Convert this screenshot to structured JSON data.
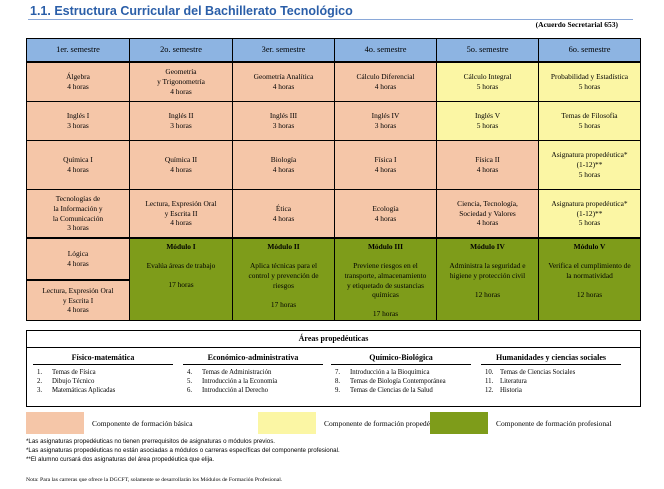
{
  "title": "1.1. Estructura Curricular del Bachillerato Tecnológico",
  "acuerdo": "(Acuerdo Secretarial 653)",
  "colors": {
    "basica": "#f5c6a8",
    "propedeutica": "#fbf6a4",
    "profesional": "#7e9c1a",
    "header": "#8db4e2"
  },
  "semesters": [
    "1er. semestre",
    "2o. semestre",
    "3er. semestre",
    "4o. semestre",
    "5o. semestre",
    "6o. semestre"
  ],
  "rows": [
    [
      {
        "l1": "Álgebra",
        "h": "4 horas"
      },
      {
        "l1": "Geometría",
        "l2": "y Trigonometría",
        "h": "4 horas"
      },
      {
        "l1": "Geometría Analítica",
        "h": "4 horas"
      },
      {
        "l1": "Cálculo Diferencial",
        "h": "4 horas"
      },
      {
        "l1": "Cálculo Integral",
        "h": "5 horas"
      },
      {
        "l1": "Probabilidad y Estadística",
        "h": "5 horas"
      }
    ],
    [
      {
        "l1": "Inglés I",
        "h": "3 horas"
      },
      {
        "l1": "Inglés II",
        "h": "3 horas"
      },
      {
        "l1": "Inglés III",
        "h": "3 horas"
      },
      {
        "l1": "Inglés IV",
        "h": "3 horas"
      },
      {
        "l1": "Inglés V",
        "h": "5 horas"
      },
      {
        "l1": "Temas de Filosofía",
        "h": "5 horas"
      }
    ],
    [
      {
        "l1": "Química I",
        "h": "4 horas"
      },
      {
        "l1": "Química II",
        "h": "4 horas"
      },
      {
        "l1": "Biología",
        "h": "4 horas"
      },
      {
        "l1": "Física I",
        "h": "4 horas"
      },
      {
        "l1": "Física II",
        "h": "4 horas"
      },
      {
        "l1": "Asignatura propedéutica*",
        "l2": "(1-12)**",
        "h": "5 horas"
      }
    ],
    [
      {
        "l1": "Tecnologías de",
        "l2": "la Información y",
        "l3": "la Comunicación",
        "h": "3 horas"
      },
      {
        "l1": "Lectura, Expresión Oral",
        "l2": "y Escrita II",
        "h": "4 horas"
      },
      {
        "l1": "Ética",
        "h": "4 horas"
      },
      {
        "l1": "Ecología",
        "h": "4 horas"
      },
      {
        "l1": "Ciencia, Tecnología,",
        "l2": "Sociedad y Valores",
        "h": "4 horas"
      },
      {
        "l1": "Asignatura propedéutica*",
        "l2": "(1-12)**",
        "h": "5 horas"
      }
    ]
  ],
  "first_col_bottom": [
    {
      "l1": "Lógica",
      "h": "4 horas"
    },
    {
      "l1": "Lectura, Expresión Oral",
      "l2": "y Escrita I",
      "h": "4 horas"
    }
  ],
  "modules": [
    {
      "title": "Módulo I",
      "l1": "Evalúa áreas de trabajo",
      "h": "17 horas"
    },
    {
      "title": "Módulo II",
      "l1": "Aplica técnicas para el",
      "l2": "control y prevención de",
      "l3": "riesgos",
      "h": "17 horas"
    },
    {
      "title": "Módulo III",
      "l1": "Previene riesgos en el",
      "l2": "transporte, almacenamiento",
      "l3": "y etiquetado de sustancias",
      "l4": "químicas",
      "h": "17 horas"
    },
    {
      "title": "Módulo IV",
      "l1": "Administra la seguridad e",
      "l2": "higiene y protección civil",
      "h": "12 horas"
    },
    {
      "title": "Módulo V",
      "l1": "Verifica el cumplimiento de",
      "l2": "la normatividad",
      "h": "12 horas"
    }
  ],
  "areas": {
    "title": "Áreas propedéuticas",
    "cols": [
      {
        "name": "Físico-matemática",
        "items": [
          {
            "n": "1.",
            "t": "Temas de Física"
          },
          {
            "n": "2.",
            "t": "Dibujo Técnico"
          },
          {
            "n": "3.",
            "t": "Matemáticas Aplicadas"
          }
        ]
      },
      {
        "name": "Económico-administrativa",
        "items": [
          {
            "n": "4.",
            "t": "Temas de Administración"
          },
          {
            "n": "5.",
            "t": "Introducción a la Economía"
          },
          {
            "n": "6.",
            "t": "Introducción al Derecho"
          }
        ]
      },
      {
        "name": "Químico-Biológica",
        "items": [
          {
            "n": "7.",
            "t": "Introducción a la Bioquímica"
          },
          {
            "n": "8.",
            "t": "Temas de Biología Contemporánea"
          },
          {
            "n": "9.",
            "t": "Temas de Ciencias de la Salud"
          }
        ]
      },
      {
        "name": "Humanidades y ciencias sociales",
        "items": [
          {
            "n": "10.",
            "t": "Temas de Ciencias Sociales"
          },
          {
            "n": "11.",
            "t": "Literatura"
          },
          {
            "n": "12.",
            "t": "Historia"
          }
        ]
      }
    ]
  },
  "legend": [
    {
      "label": "Componente de formación básica",
      "color": "#f5c6a8"
    },
    {
      "label": "Componente de formación propedéutica",
      "color": "#fbf6a4"
    },
    {
      "label": "Componente de formación profesional",
      "color": "#7e9c1a"
    }
  ],
  "notes": [
    "*Las asignaturas propedéuticas no tienen prerrequisitos de asignaturas o módulos previos.",
    "*Las asignaturas propedéuticas no están asociadas a módulos o carreras específicas del componente profesional.",
    "**El alumno cursará dos asignaturas del área propedéutica que elija."
  ],
  "nota": "Nota: Para las carreras que ofrece la DGCFT, solamente se desarrollarán los Módulos de Formación Profesional."
}
